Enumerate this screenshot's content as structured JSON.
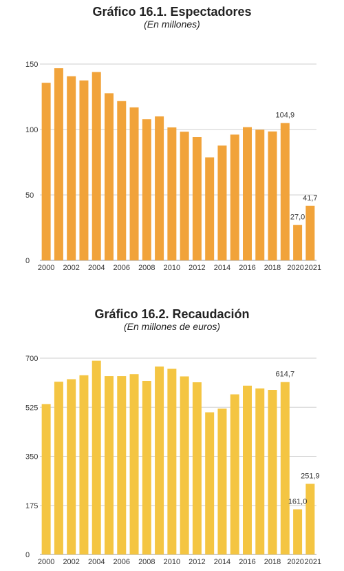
{
  "chart_data": [
    {
      "type": "bar",
      "title": "Gráfico 16.1. Espectadores",
      "subtitle": "(En millones)",
      "xlabel": "",
      "ylabel": "",
      "color": "#F1A33A",
      "ylim": [
        0,
        150
      ],
      "yticks": [
        "0",
        "50",
        "100",
        "150"
      ],
      "ytick_values": [
        0,
        50,
        100,
        150
      ],
      "x": [
        2000,
        2001,
        2002,
        2003,
        2004,
        2005,
        2006,
        2007,
        2008,
        2009,
        2010,
        2011,
        2012,
        2013,
        2014,
        2015,
        2016,
        2017,
        2018,
        2019,
        2020,
        2021
      ],
      "xtick_labels": [
        "2000",
        "2002",
        "2004",
        "2006",
        "2008",
        "2010",
        "2012",
        "2014",
        "2016",
        "2018",
        "2020",
        "2021"
      ],
      "values": [
        135.7,
        146.8,
        140.7,
        137.5,
        143.9,
        127.7,
        121.7,
        116.9,
        107.8,
        110.0,
        101.6,
        98.3,
        94.2,
        78.7,
        87.7,
        96.1,
        101.8,
        99.8,
        98.5,
        104.9,
        27.0,
        41.7
      ],
      "data_labels": [
        {
          "index": 19,
          "text": "104,9"
        },
        {
          "index": 20,
          "text": "27,0"
        },
        {
          "index": 21,
          "text": "41,7"
        }
      ],
      "grid": true
    },
    {
      "type": "bar",
      "title": "Gráfico 16.2. Recaudación",
      "subtitle": "(En millones de euros)",
      "xlabel": "",
      "ylabel": "",
      "color": "#F4C542",
      "ylim": [
        0,
        700
      ],
      "yticks": [
        "0",
        "175",
        "350",
        "525",
        "700"
      ],
      "ytick_values": [
        0,
        175,
        350,
        525,
        700
      ],
      "x": [
        2000,
        2001,
        2002,
        2003,
        2004,
        2005,
        2006,
        2007,
        2008,
        2009,
        2010,
        2011,
        2012,
        2013,
        2014,
        2015,
        2016,
        2017,
        2018,
        2019,
        2020,
        2021
      ],
      "xtick_labels": [
        "2000",
        "2002",
        "2004",
        "2006",
        "2008",
        "2010",
        "2012",
        "2014",
        "2016",
        "2018",
        "2020",
        "2021"
      ],
      "values": [
        536.0,
        616.0,
        625.0,
        639.0,
        691.0,
        636.0,
        636.0,
        643.0,
        619.0,
        670.0,
        662.0,
        635.0,
        614.0,
        507.0,
        520.0,
        571.0,
        602.0,
        592.0,
        587.0,
        614.7,
        161.0,
        251.9
      ],
      "data_labels": [
        {
          "index": 19,
          "text": "614,7"
        },
        {
          "index": 20,
          "text": "161,0"
        },
        {
          "index": 21,
          "text": "251,9"
        }
      ],
      "grid": true
    }
  ]
}
